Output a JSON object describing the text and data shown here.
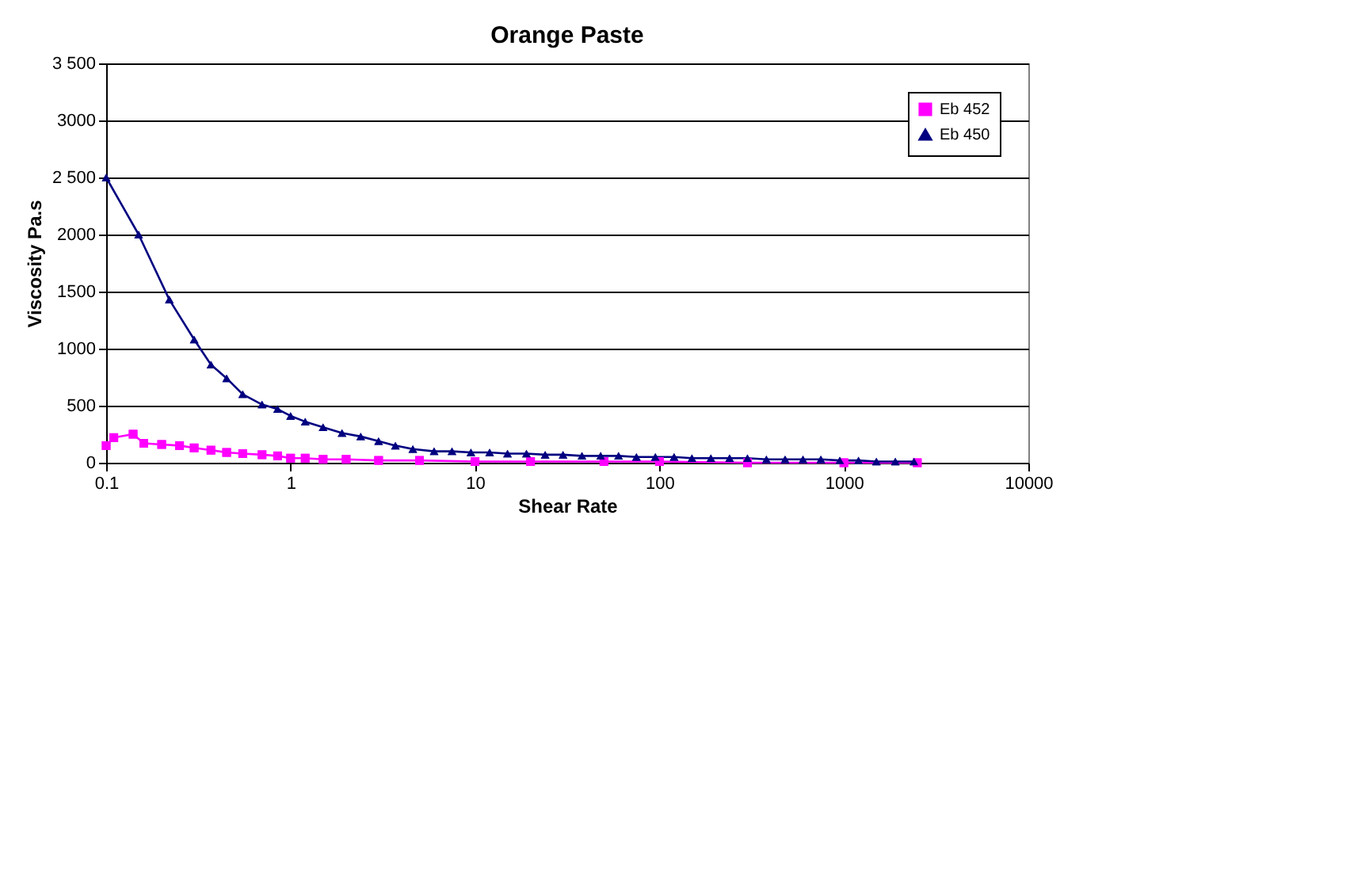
{
  "chart_data": {
    "type": "line",
    "title": "Orange Paste",
    "xlabel": "Shear Rate",
    "ylabel": "Viscosity Pa.s",
    "log": "x",
    "xlim": [
      0.1,
      10000
    ],
    "xticks": [
      0.1,
      1,
      10,
      100,
      1000,
      10000
    ],
    "ylim": [
      0,
      3500
    ],
    "yticks": [
      0,
      500,
      1000,
      1500,
      2000,
      {
        "value": 2500,
        "label": "2 500"
      },
      3000,
      {
        "value": 3500,
        "label": "3 500"
      }
    ],
    "grid": "y",
    "legend": "top right",
    "series": [
      {
        "name": "Eb 452",
        "color": "#ff00ff",
        "marker": "square",
        "x": [
          0.1,
          0.11,
          0.14,
          0.16,
          0.2,
          0.25,
          0.3,
          0.37,
          0.45,
          0.55,
          0.7,
          0.85,
          1.0,
          1.2,
          1.5,
          2,
          3,
          5,
          10,
          20,
          50,
          100,
          300,
          1000,
          2500
        ],
        "values": [
          150,
          220,
          250,
          170,
          160,
          150,
          130,
          110,
          90,
          80,
          70,
          60,
          40,
          40,
          30,
          30,
          20,
          20,
          10,
          10,
          10,
          10,
          0,
          0,
          0
        ]
      },
      {
        "name": "Eb 450",
        "color": "#000080",
        "marker": "triangle",
        "x": [
          0.1,
          0.15,
          0.22,
          0.3,
          0.37,
          0.45,
          0.55,
          0.7,
          0.85,
          1.0,
          1.2,
          1.5,
          1.9,
          2.4,
          3,
          3.7,
          4.6,
          6,
          7.5,
          9.5,
          12,
          15,
          19,
          24,
          30,
          38,
          48,
          60,
          75,
          95,
          120,
          150,
          190,
          240,
          300,
          380,
          480,
          600,
          750,
          950,
          1200,
          1500,
          1900,
          2400
        ],
        "values": [
          2500,
          2000,
          1430,
          1080,
          860,
          740,
          600,
          510,
          470,
          410,
          360,
          310,
          260,
          230,
          190,
          150,
          120,
          100,
          100,
          90,
          90,
          80,
          80,
          70,
          70,
          60,
          60,
          60,
          50,
          50,
          50,
          40,
          40,
          40,
          40,
          30,
          30,
          30,
          30,
          20,
          20,
          10,
          10,
          10
        ]
      }
    ]
  }
}
